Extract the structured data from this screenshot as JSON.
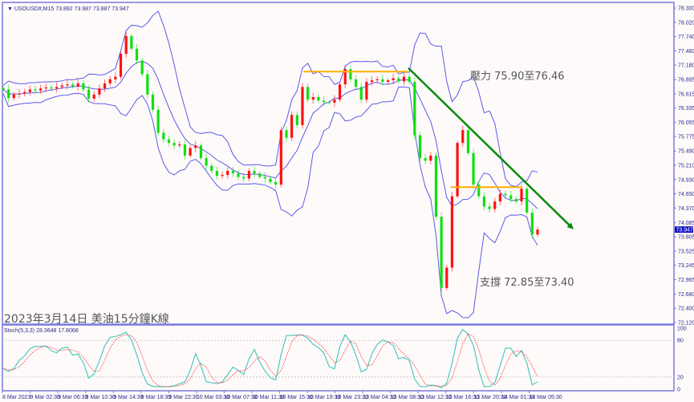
{
  "header": {
    "symbol": "USOUSD#,M15",
    "ohlc": "73.892 73.987 73.887 73.947"
  },
  "caption": "2023年3月14日 美油15分鐘K線",
  "annotations": {
    "resistance": "壓力 75.90至76.46",
    "support": "支撐 72.85至73.40"
  },
  "colors": {
    "up": "#ff1010",
    "down": "#10e010",
    "bands": "#5a5ae6",
    "trend": "#0a8a0a",
    "level": "#ffb000",
    "stoch_main": "#4cc9c0",
    "stoch_signal": "#ff4040",
    "frame": "#7878e0"
  },
  "chart_data": [
    {
      "type": "candlestick",
      "title": "USOUSD#,M15",
      "ylim": [
        72.12,
        78.3
      ],
      "y_ticks": [
        "78.300",
        "78.020",
        "77.740",
        "77.460",
        "77.180",
        "76.895",
        "76.615",
        "76.335",
        "76.055",
        "75.775",
        "75.490",
        "75.210",
        "74.930",
        "74.650",
        "74.370",
        "74.085",
        "73.805",
        "73.525",
        "73.245",
        "72.965",
        "72.680",
        "72.400",
        "72.120"
      ],
      "x_ticks": [
        "8 Mar 2023",
        "9 Mar 02:30",
        "9 Mar 06:30",
        "9 Mar 10:30",
        "9 Mar 14:30",
        "9 Mar 18:30",
        "9 Mar 22:30",
        "10 Mar 03:30",
        "10 Mar 07:30",
        "10 Mar 11:30",
        "10 Mar 15:30",
        "10 Mar 19:30",
        "10 Mar 23:30",
        "13 Mar 04:30",
        "13 Mar 08:30",
        "13 Mar 12:30",
        "13 Mar 16:30",
        "13 Mar 20:30",
        "14 Mar 01:30",
        "14 Mar 05:30"
      ],
      "current_price": "73.947",
      "closes": [
        76.7,
        76.53,
        76.6,
        76.62,
        76.65,
        76.7,
        76.68,
        76.72,
        76.74,
        76.72,
        76.75,
        76.78,
        76.8,
        76.76,
        76.82,
        76.7,
        76.52,
        76.6,
        76.72,
        76.82,
        76.9,
        76.95,
        77.4,
        77.75,
        77.5,
        77.27,
        77.0,
        76.6,
        76.3,
        75.85,
        75.72,
        75.65,
        75.6,
        75.62,
        75.4,
        75.55,
        75.6,
        75.35,
        75.2,
        75.1,
        75.0,
        75.02,
        75.1,
        75.05,
        74.98,
        74.95,
        75.1,
        75.05,
        74.98,
        74.95,
        74.88,
        74.83,
        75.9,
        75.75,
        76.2,
        76.0,
        76.75,
        76.5,
        76.55,
        76.48,
        76.45,
        76.44,
        76.5,
        76.8,
        77.1,
        76.9,
        76.75,
        76.5,
        76.85,
        76.88,
        76.9,
        76.85,
        76.88,
        76.92,
        76.86,
        76.95,
        76.85,
        75.8,
        75.35,
        75.3,
        75.4,
        74.2,
        72.8,
        73.2,
        74.6,
        75.65,
        75.9,
        75.45,
        74.83,
        74.6,
        74.4,
        74.35,
        74.5,
        74.65,
        74.62,
        74.55,
        74.5,
        74.75,
        74.28,
        73.85,
        73.947
      ],
      "indicators": [
        "Bollinger Bands"
      ],
      "resistance_level": 77.05,
      "support_level": 74.78,
      "trendline": [
        77.12,
        73.95
      ]
    },
    {
      "type": "line",
      "title": "Stoch(5,3,3) 28.3648 17.8068",
      "ylim": [
        0,
        100
      ],
      "y_ticks": [
        "100",
        "80",
        "20",
        "0"
      ],
      "levels": [
        80,
        20
      ],
      "series": [
        {
          "name": "main"
        },
        {
          "name": "signal"
        }
      ]
    }
  ]
}
